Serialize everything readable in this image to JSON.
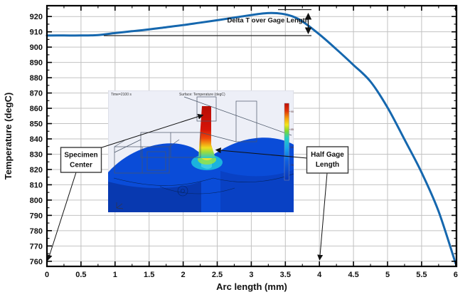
{
  "chart_data": {
    "type": "line",
    "title": "",
    "xlabel": "Arc length (mm)",
    "ylabel": "Temperature (degC)",
    "xlim": [
      0,
      6.02
    ],
    "ylim": [
      756.5,
      927
    ],
    "grid": true,
    "x_tick_step": 0.5,
    "x_minor_step": 0.25,
    "y_tick_step": 10,
    "y_minor_step": 5,
    "x_ticks": [
      0,
      0.5,
      1,
      1.5,
      2,
      2.5,
      3,
      3.5,
      4,
      4.5,
      5,
      5.5,
      6
    ],
    "x_tick_labels": [
      "0",
      "0.5",
      "1",
      "1.5",
      "2",
      "2.5",
      "3",
      "3.5",
      "4",
      "4.5",
      "5",
      "5.5",
      "6"
    ],
    "y_ticks": [
      760,
      770,
      780,
      790,
      800,
      810,
      820,
      830,
      840,
      850,
      860,
      870,
      880,
      890,
      900,
      910,
      920
    ],
    "y_tick_labels": [
      "760",
      "770",
      "780",
      "790",
      "800",
      "810",
      "820",
      "830",
      "840",
      "850",
      "860",
      "870",
      "880",
      "890",
      "900",
      "910",
      "920"
    ],
    "series": [
      {
        "name": "surface-temperature-profile",
        "color": "#1567ae",
        "x": [
          0,
          0.25,
          0.5,
          0.75,
          1.0,
          1.25,
          1.5,
          1.75,
          2.0,
          2.25,
          2.5,
          2.75,
          3.0,
          3.15,
          3.3,
          3.45,
          3.6,
          3.75,
          4.0,
          4.25,
          4.5,
          4.75,
          5.0,
          5.25,
          5.5,
          5.75,
          6.0
        ],
        "y": [
          907.6,
          907.6,
          907.6,
          907.9,
          909.2,
          910.4,
          911.6,
          913.0,
          914.4,
          916.0,
          917.6,
          919.3,
          921.0,
          921.9,
          922.3,
          921.8,
          920.2,
          916.8,
          908.3,
          898.6,
          888.3,
          877.5,
          860.5,
          839.5,
          818.0,
          792.5,
          758.5
        ]
      }
    ]
  },
  "annotations": {
    "delta_label": "Delta T over Gage Length",
    "delta_temp_ref": 907.6,
    "delta_temp_peak": 922.3,
    "specimen_center": {
      "line1": "Specimen",
      "line2": "Center",
      "target_x_mm": 0
    },
    "half_gage": {
      "line1": "Half Gage",
      "line2": "Length",
      "target_x_mm": 4
    }
  },
  "inset": {
    "time_label": "Time=2100 s",
    "title": "Surface: Temperature (degC)",
    "colorbar_ticks": [
      "900",
      "850",
      "800",
      "750"
    ]
  }
}
